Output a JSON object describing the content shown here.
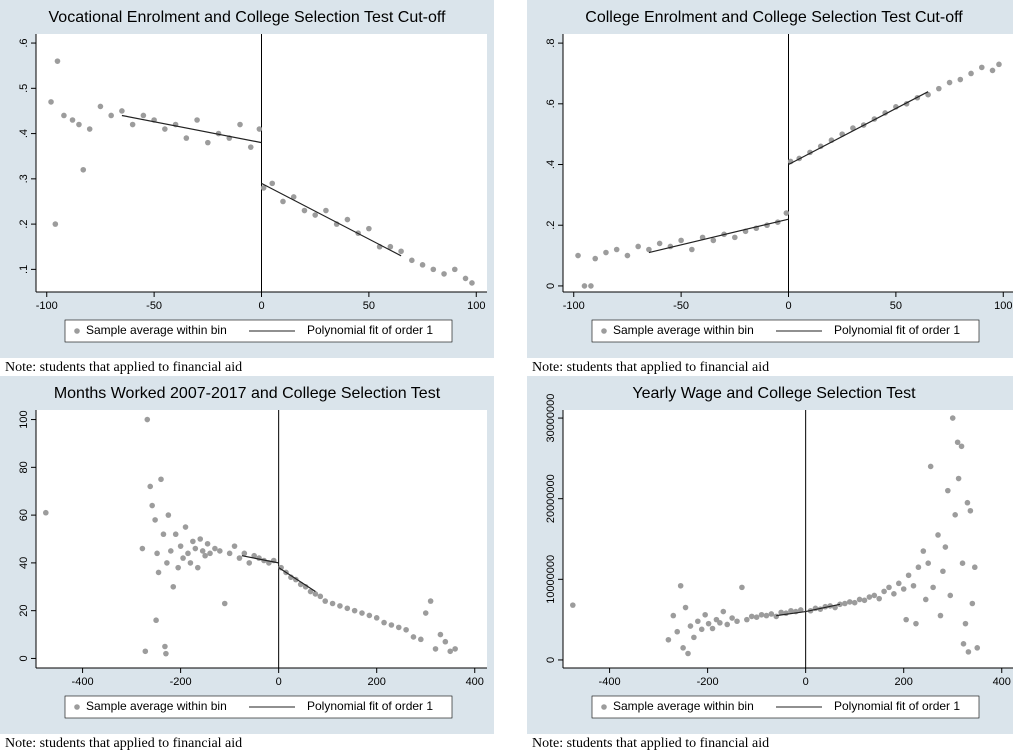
{
  "chart_data": [
    {
      "type": "scatter",
      "title": "Vocational Enrolment and College Selection Test Cut-off",
      "note": "Note: students that applied to financial aid",
      "xlim": [
        -105,
        105
      ],
      "xticks": [
        -100,
        -50,
        0,
        50,
        100
      ],
      "ylim": [
        0.05,
        0.62
      ],
      "yticks": [
        {
          "value": 0.1,
          "label": ".1"
        },
        {
          "value": 0.2,
          "label": ".2"
        },
        {
          "value": 0.3,
          "label": ".3"
        },
        {
          "value": 0.4,
          "label": ".4"
        },
        {
          "value": 0.5,
          "label": ".5"
        },
        {
          "value": 0.6,
          "label": ".6"
        }
      ],
      "cutoff": 0,
      "series": [
        {
          "name": "Sample average within bin",
          "color": "#9c9c9c",
          "x": [
            -98,
            -95,
            -92,
            -88,
            -85,
            -80,
            -75,
            -70,
            -65,
            -60,
            -55,
            -50,
            -45,
            -40,
            -35,
            -30,
            -25,
            -20,
            -15,
            -10,
            -5,
            -1,
            1,
            5,
            10,
            15,
            20,
            25,
            30,
            35,
            40,
            45,
            50,
            55,
            60,
            65,
            70,
            75,
            80,
            85,
            90,
            95,
            98,
            -96,
            -83
          ],
          "y": [
            0.47,
            0.56,
            0.44,
            0.43,
            0.42,
            0.41,
            0.46,
            0.44,
            0.45,
            0.42,
            0.44,
            0.43,
            0.41,
            0.42,
            0.39,
            0.43,
            0.38,
            0.4,
            0.39,
            0.42,
            0.37,
            0.41,
            0.28,
            0.29,
            0.25,
            0.26,
            0.23,
            0.22,
            0.23,
            0.2,
            0.21,
            0.18,
            0.19,
            0.15,
            0.15,
            0.14,
            0.12,
            0.11,
            0.1,
            0.09,
            0.1,
            0.08,
            0.07,
            0.2,
            0.32
          ]
        },
        {
          "name": "Polynomial fit of order 1",
          "color": "#222222",
          "x": [
            -65,
            0,
            null,
            0,
            65
          ],
          "y": [
            0.44,
            0.38,
            null,
            0.29,
            0.13
          ]
        }
      ]
    },
    {
      "type": "scatter",
      "title": "College Enrolment and College Selection Test Cut-off",
      "note": "Note: students that applied to financial aid",
      "xlim": [
        -105,
        105
      ],
      "xticks": [
        -100,
        -50,
        0,
        50,
        100
      ],
      "ylim": [
        -0.02,
        0.83
      ],
      "yticks": [
        0,
        {
          "value": 0.2,
          "label": ".2"
        },
        {
          "value": 0.4,
          "label": ".4"
        },
        {
          "value": 0.6,
          "label": ".6"
        },
        {
          "value": 0.8,
          "label": ".8"
        }
      ],
      "cutoff": 0,
      "series": [
        {
          "name": "Sample average within bin",
          "color": "#9c9c9c",
          "x": [
            -98,
            -90,
            -85,
            -80,
            -75,
            -70,
            -65,
            -60,
            -55,
            -50,
            -45,
            -40,
            -35,
            -30,
            -25,
            -20,
            -15,
            -10,
            -5,
            -1,
            1,
            5,
            10,
            15,
            20,
            25,
            30,
            35,
            40,
            45,
            50,
            55,
            60,
            65,
            70,
            75,
            80,
            85,
            90,
            95,
            98,
            -95,
            -92
          ],
          "y": [
            0.1,
            0.09,
            0.11,
            0.12,
            0.1,
            0.13,
            0.12,
            0.14,
            0.13,
            0.15,
            0.12,
            0.16,
            0.15,
            0.17,
            0.16,
            0.18,
            0.19,
            0.2,
            0.21,
            0.24,
            0.41,
            0.42,
            0.44,
            0.46,
            0.48,
            0.5,
            0.52,
            0.53,
            0.55,
            0.57,
            0.59,
            0.6,
            0.62,
            0.63,
            0.65,
            0.67,
            0.68,
            0.7,
            0.72,
            0.71,
            0.73,
            0,
            0
          ]
        },
        {
          "name": "Polynomial fit of order 1",
          "color": "#222222",
          "x": [
            -65,
            0,
            null,
            0,
            65
          ],
          "y": [
            0.11,
            0.22,
            null,
            0.4,
            0.64
          ]
        }
      ]
    },
    {
      "type": "scatter",
      "title": "Months Worked 2007-2017 and College Selection Test",
      "note": "Note: students that applied to financial aid",
      "xlim": [
        -495,
        425
      ],
      "xticks": [
        -400,
        -200,
        0,
        200,
        400
      ],
      "ylim": [
        -4,
        104
      ],
      "yticks": [
        0,
        20,
        40,
        60,
        80,
        100
      ],
      "cutoff": 0,
      "series": [
        {
          "name": "Sample average within bin",
          "color": "#9c9c9c",
          "x": [
            -278,
            -272,
            -268,
            -262,
            -258,
            -252,
            -248,
            -245,
            -240,
            -235,
            -232,
            -228,
            -225,
            -220,
            -215,
            -210,
            -205,
            -200,
            -195,
            -190,
            -185,
            -180,
            -175,
            -170,
            -165,
            -160,
            -155,
            -150,
            -145,
            -140,
            -130,
            -120,
            -110,
            -100,
            -90,
            -80,
            -70,
            -60,
            -50,
            -40,
            -30,
            -20,
            -10,
            5,
            15,
            25,
            35,
            45,
            55,
            65,
            75,
            85,
            95,
            110,
            125,
            140,
            155,
            170,
            185,
            200,
            215,
            230,
            245,
            260,
            275,
            290,
            300,
            310,
            320,
            330,
            340,
            350,
            360,
            -475,
            -250,
            -230
          ],
          "y": [
            46,
            3,
            100,
            72,
            64,
            58,
            44,
            36,
            75,
            52,
            5,
            40,
            60,
            45,
            30,
            52,
            38,
            47,
            42,
            55,
            44,
            40,
            49,
            46,
            38,
            50,
            45,
            43,
            48,
            44,
            46,
            45,
            23,
            44,
            47,
            42,
            44,
            40,
            43,
            42,
            41,
            40,
            41,
            38,
            36,
            34,
            33,
            31,
            30,
            28,
            27,
            26,
            24,
            23,
            22,
            21,
            20,
            19,
            18,
            17,
            15,
            14,
            13,
            12,
            9,
            8,
            19,
            24,
            4,
            10,
            7,
            3,
            4,
            61,
            16,
            2
          ]
        },
        {
          "name": "Polynomial fit of order 1",
          "color": "#222222",
          "x": [
            -75,
            0,
            null,
            0,
            75
          ],
          "y": [
            43,
            40,
            null,
            38,
            28
          ]
        }
      ]
    },
    {
      "type": "scatter",
      "title": "Yearly Wage and College Selection Test",
      "note": "Note: students that applied to financial aid",
      "xlim": [
        -495,
        425
      ],
      "xticks": [
        -400,
        -200,
        0,
        200,
        400
      ],
      "ylim": [
        -1000000,
        31000000
      ],
      "yticks": [
        0,
        10000000,
        20000000,
        30000000
      ],
      "cutoff": 0,
      "series": [
        {
          "name": "Sample average within bin",
          "color": "#9c9c9c",
          "x": [
            -280,
            -270,
            -262,
            -255,
            -250,
            -245,
            -240,
            -235,
            -228,
            -220,
            -212,
            -205,
            -198,
            -190,
            -182,
            -175,
            -168,
            -160,
            -150,
            -140,
            -130,
            -120,
            -110,
            -100,
            -90,
            -80,
            -70,
            -60,
            -50,
            -40,
            -30,
            -20,
            -10,
            10,
            20,
            30,
            40,
            50,
            60,
            70,
            80,
            90,
            100,
            110,
            120,
            130,
            140,
            150,
            160,
            170,
            180,
            190,
            200,
            205,
            210,
            220,
            225,
            230,
            240,
            245,
            250,
            255,
            260,
            270,
            275,
            280,
            285,
            290,
            295,
            300,
            305,
            310,
            312,
            318,
            320,
            322,
            326,
            330,
            332,
            336,
            340,
            345,
            350,
            -475
          ],
          "y": [
            2500000,
            5500000,
            3500000,
            9200000,
            1500000,
            6500000,
            800000,
            4200000,
            2800000,
            4800000,
            3800000,
            5600000,
            4500000,
            3900000,
            5000000,
            4600000,
            6000000,
            4400000,
            5200000,
            4800000,
            9000000,
            5000000,
            5400000,
            5300000,
            5600000,
            5500000,
            5700000,
            5400000,
            5900000,
            5800000,
            6100000,
            6000000,
            6200000,
            6100000,
            6400000,
            6300000,
            6600000,
            6700000,
            6500000,
            6900000,
            7000000,
            7200000,
            7100000,
            7500000,
            7400000,
            7800000,
            8000000,
            7600000,
            8500000,
            9000000,
            8200000,
            9500000,
            8800000,
            5000000,
            10500000,
            9200000,
            4500000,
            11500000,
            13500000,
            7500000,
            12000000,
            24000000,
            9000000,
            15500000,
            5500000,
            11000000,
            14000000,
            21000000,
            8000000,
            30000000,
            18000000,
            27000000,
            22500000,
            26500000,
            12000000,
            2000000,
            4500000,
            19500000,
            1000000,
            18500000,
            7000000,
            11500000,
            1500000,
            6800000
          ]
        },
        {
          "name": "Polynomial fit of order 1",
          "color": "#222222",
          "x": [
            -60,
            0,
            null,
            0,
            70
          ],
          "y": [
            5500000,
            6000000,
            null,
            6000000,
            6900000
          ]
        }
      ]
    }
  ]
}
